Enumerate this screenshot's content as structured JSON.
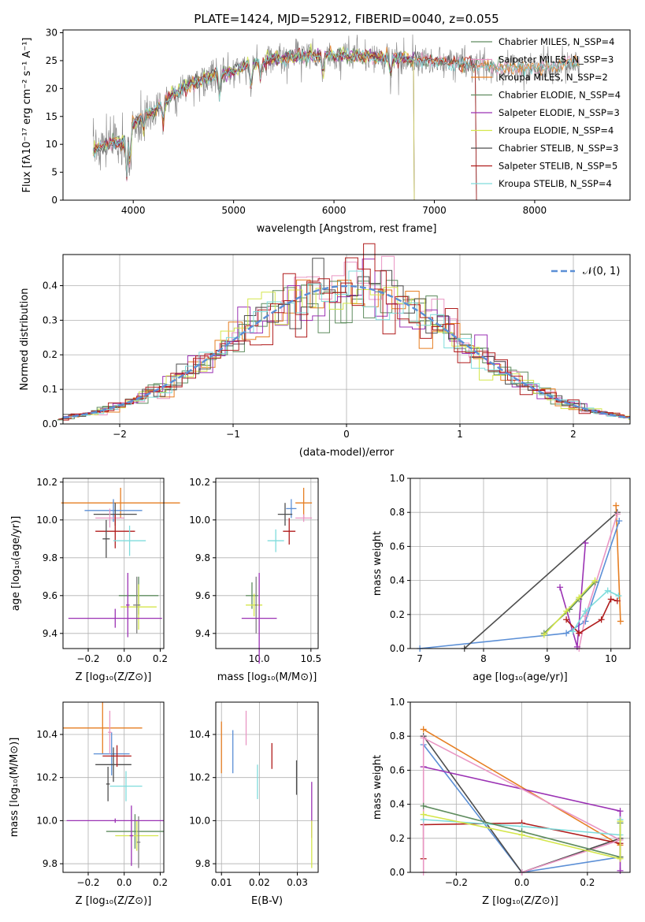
{
  "figure_title": "PLATE=1424, MJD=52912, FIBERID=0040, z=0.055",
  "chart_data": [
    {
      "id": "spectrum",
      "type": "line",
      "xlabel": "wavelength [Angstrom, rest frame]",
      "ylabel": "Flux [fλ10⁻¹⁷ erg cm⁻² s⁻¹ A⁻¹]",
      "xlim": [
        3300,
        8950
      ],
      "ylim": [
        0,
        30.5
      ],
      "xticks": [
        "4000",
        "5000",
        "6000",
        "7000",
        "8000"
      ],
      "yticks": [
        "0",
        "5",
        "10",
        "15",
        "20",
        "25",
        "30"
      ],
      "observed_color": "#808080",
      "legend_position": "upper right",
      "series": [
        {
          "name": "Chabrier MILES, N_SSP=4",
          "color": "#5f8c5f",
          "end": 8450
        },
        {
          "name": "Salpeter MILES, N_SSP=3",
          "color": "#e996c4",
          "end": 8450
        },
        {
          "name": "Kroupa MILES, N_SSP=2",
          "color": "#e67e22",
          "end": 8450
        },
        {
          "name": "Chabrier ELODIE, N_SSP=4",
          "color": "#5f8c5f",
          "end": 6800
        },
        {
          "name": "Salpeter ELODIE, N_SSP=3",
          "color": "#9b32b4",
          "end": 6800
        },
        {
          "name": "Kroupa ELODIE, N_SSP=4",
          "color": "#d4e64b",
          "end": 6800
        },
        {
          "name": "Chabrier STELIB, N_SSP=3",
          "color": "#4d4d4d",
          "end": 7420
        },
        {
          "name": "Salpeter STELIB, N_SSP=5",
          "color": "#b01c1c",
          "end": 7420
        },
        {
          "name": "Kroupa STELIB, N_SSP=4",
          "color": "#7fdcdc",
          "end": 8450
        }
      ],
      "continuum_knots": [
        [
          3600,
          9
        ],
        [
          3700,
          10
        ],
        [
          3900,
          10.5
        ],
        [
          4000,
          14
        ],
        [
          4200,
          16
        ],
        [
          4400,
          19
        ],
        [
          4600,
          21
        ],
        [
          4800,
          22.5
        ],
        [
          5000,
          23
        ],
        [
          5200,
          24.5
        ],
        [
          5500,
          25.5
        ],
        [
          5800,
          26
        ],
        [
          6100,
          26
        ],
        [
          6500,
          25.5
        ],
        [
          7000,
          25
        ],
        [
          7500,
          24
        ],
        [
          8000,
          23.5
        ],
        [
          8500,
          25
        ]
      ]
    },
    {
      "id": "residuals",
      "type": "step",
      "xlabel": "(data-model)/error",
      "ylabel": "Normed distribution",
      "xlim": [
        -2.5,
        2.5
      ],
      "ylim": [
        0,
        0.49
      ],
      "xticks": [
        "−2",
        "−1",
        "0",
        "1",
        "2"
      ],
      "yticks": [
        "0.0",
        "0.1",
        "0.2",
        "0.3",
        "0.4"
      ],
      "legend": "𝒩(0, 1)",
      "gaussian_color": "#5b8fd6"
    },
    {
      "id": "age_vs_Z",
      "type": "errorbar",
      "xlabel": "Z [log₁₀(Z/Z⊙)]",
      "ylabel": "age  [log₁₀(age/yr)]",
      "xlim": [
        -0.34,
        0.22
      ],
      "ylim": [
        9.32,
        10.22
      ],
      "xticks": [
        "−0.2",
        "0.0",
        "0.2"
      ],
      "xtick_values": [
        -0.2,
        0.0,
        0.2
      ],
      "yticks": [
        "9.4",
        "9.6",
        "9.8",
        "10.0",
        "10.2"
      ],
      "ytick_values": [
        9.4,
        9.6,
        9.8,
        10.0,
        10.2
      ],
      "points": [
        {
          "x": -0.02,
          "y": 10.09,
          "xe": 0.33,
          "ye": 0.08,
          "color": "#e67e22"
        },
        {
          "x": -0.06,
          "y": 10.05,
          "xe": 0.16,
          "ye": 0.06,
          "color": "#5b8fd6"
        },
        {
          "x": -0.05,
          "y": 10.03,
          "xe": 0.12,
          "ye": 0.06,
          "color": "#4d4d4d"
        },
        {
          "x": -0.08,
          "y": 10.01,
          "xe": 0.08,
          "ye": 0.05,
          "color": "#e996c4"
        },
        {
          "x": -0.05,
          "y": 9.94,
          "xe": 0.11,
          "ye": 0.09,
          "color": "#b01c1c"
        },
        {
          "x": 0.03,
          "y": 9.89,
          "xe": 0.09,
          "ye": 0.08,
          "color": "#7fdcdc"
        },
        {
          "x": -0.1,
          "y": 9.9,
          "xe": 0.02,
          "ye": 0.1,
          "color": "#4d4d4d"
        },
        {
          "x": 0.08,
          "y": 9.6,
          "xe": 0.11,
          "ye": 0.1,
          "color": "#5f8c5f"
        },
        {
          "x": 0.08,
          "y": 9.54,
          "xe": 0.1,
          "ye": 0.12,
          "color": "#d4e64b"
        },
        {
          "x": 0.07,
          "y": 9.55,
          "xe": 0.02,
          "ye": 0.15,
          "color": "#808080"
        },
        {
          "x": -0.05,
          "y": 9.48,
          "xe": 0.26,
          "ye": 0.05,
          "color": "#9b32b4"
        },
        {
          "x": 0.02,
          "y": 9.55,
          "xe": 0.01,
          "ye": 0.17,
          "color": "#9b32b4"
        }
      ]
    },
    {
      "id": "age_vs_mass",
      "type": "errorbar",
      "xlabel": "mass [log₁₀(M/M⊙)]",
      "ylabel": "",
      "xlim": [
        9.58,
        10.57
      ],
      "ylim": [
        9.32,
        10.22
      ],
      "xticks": [
        "10.0",
        "10.5"
      ],
      "xtick_values": [
        10.0,
        10.5
      ],
      "yticks": [
        "9.4",
        "9.6",
        "9.8",
        "10.0",
        "10.2"
      ],
      "ytick_values": [
        9.4,
        9.6,
        9.8,
        10.0,
        10.2
      ],
      "points": [
        {
          "x": 10.43,
          "y": 10.09,
          "xe": 0.08,
          "ye": 0.08,
          "color": "#e67e22"
        },
        {
          "x": 10.31,
          "y": 10.06,
          "xe": 0.05,
          "ye": 0.05,
          "color": "#5b8fd6"
        },
        {
          "x": 10.43,
          "y": 10.01,
          "xe": 0.08,
          "ye": 0.02,
          "color": "#e996c4"
        },
        {
          "x": 10.25,
          "y": 10.03,
          "xe": 0.07,
          "ye": 0.06,
          "color": "#4d4d4d"
        },
        {
          "x": 10.29,
          "y": 9.94,
          "xe": 0.06,
          "ye": 0.07,
          "color": "#b01c1c"
        },
        {
          "x": 10.16,
          "y": 9.89,
          "xe": 0.08,
          "ye": 0.06,
          "color": "#7fdcdc"
        },
        {
          "x": 9.93,
          "y": 9.6,
          "xe": 0.06,
          "ye": 0.07,
          "color": "#5f8c5f"
        },
        {
          "x": 9.95,
          "y": 9.55,
          "xe": 0.08,
          "ye": 0.06,
          "color": "#d4e64b"
        },
        {
          "x": 9.97,
          "y": 9.55,
          "xe": 0.01,
          "ye": 0.15,
          "color": "#808080"
        },
        {
          "x": 10.0,
          "y": 9.48,
          "xe": 0.17,
          "ye": 0.24,
          "color": "#9b32b4"
        }
      ]
    },
    {
      "id": "mass_weight_vs_age",
      "type": "line",
      "xlabel": "age  [log₁₀(age/yr)]",
      "ylabel": "mass weight",
      "xlim": [
        6.85,
        10.3
      ],
      "ylim": [
        0,
        1.0
      ],
      "xticks": [
        "7",
        "8",
        "9",
        "10"
      ],
      "xtick_values": [
        7,
        8,
        9,
        10
      ],
      "yticks": [
        "0.0",
        "0.2",
        "0.4",
        "0.6",
        "0.8",
        "1.0"
      ],
      "ytick_values": [
        0,
        0.2,
        0.4,
        0.6,
        0.8,
        1.0
      ],
      "series": [
        {
          "color": "#e67e22",
          "points": [
            [
              10.08,
              0.84
            ],
            [
              10.15,
              0.16
            ]
          ]
        },
        {
          "color": "#5b8fd6",
          "points": [
            [
              7.0,
              0.0
            ],
            [
              9.3,
              0.09
            ],
            [
              9.6,
              0.16
            ],
            [
              10.13,
              0.75
            ]
          ]
        },
        {
          "color": "#4d4d4d",
          "points": [
            [
              7.7,
              0.0
            ],
            [
              10.1,
              0.8
            ]
          ]
        },
        {
          "color": "#e996c4",
          "points": [
            [
              9.5,
              0.0
            ],
            [
              9.6,
              0.19
            ],
            [
              10.1,
              0.79
            ]
          ]
        },
        {
          "color": "#9b32b4",
          "points": [
            [
              9.2,
              0.36
            ],
            [
              9.47,
              0.01
            ],
            [
              9.6,
              0.62
            ]
          ]
        },
        {
          "color": "#b01c1c",
          "points": [
            [
              9.3,
              0.17
            ],
            [
              9.5,
              0.09
            ],
            [
              9.85,
              0.17
            ],
            [
              10.0,
              0.29
            ],
            [
              10.1,
              0.28
            ]
          ]
        },
        {
          "color": "#7fdcdc",
          "points": [
            [
              9.4,
              0.1
            ],
            [
              9.6,
              0.22
            ],
            [
              9.95,
              0.34
            ],
            [
              10.12,
              0.31
            ]
          ]
        },
        {
          "color": "#5f8c5f",
          "points": [
            [
              8.95,
              0.09
            ],
            [
              9.35,
              0.23
            ],
            [
              9.5,
              0.29
            ],
            [
              9.75,
              0.39
            ]
          ]
        },
        {
          "color": "#d4e64b",
          "points": [
            [
              8.95,
              0.08
            ],
            [
              9.3,
              0.22
            ],
            [
              9.5,
              0.3
            ],
            [
              9.75,
              0.4
            ]
          ]
        }
      ]
    },
    {
      "id": "mass_vs_Z",
      "type": "errorbar",
      "xlabel": "Z [log₁₀(Z/Z⊙)]",
      "ylabel": "mass [log₁₀(M/M⊙)]",
      "xlim": [
        -0.34,
        0.22
      ],
      "ylim": [
        9.76,
        10.55
      ],
      "xticks": [
        "−0.2",
        "0.0",
        "0.2"
      ],
      "xtick_values": [
        -0.2,
        0.0,
        0.2
      ],
      "yticks": [
        "9.8",
        "10.0",
        "10.2",
        "10.4"
      ],
      "ytick_values": [
        9.8,
        10.0,
        10.2,
        10.4
      ],
      "points": [
        {
          "x": -0.12,
          "y": 10.43,
          "xe": 0.22,
          "ye": 0.12,
          "color": "#e67e22"
        },
        {
          "x": -0.07,
          "y": 10.31,
          "xe": 0.1,
          "ye": 0.1,
          "color": "#5b8fd6"
        },
        {
          "x": -0.06,
          "y": 10.26,
          "xe": 0.1,
          "ye": 0.08,
          "color": "#4d4d4d"
        },
        {
          "x": -0.04,
          "y": 10.3,
          "xe": 0.08,
          "ye": 0.05,
          "color": "#b01c1c"
        },
        {
          "x": -0.08,
          "y": 10.41,
          "xe": 0.01,
          "ye": 0.1,
          "color": "#e996c4"
        },
        {
          "x": 0.01,
          "y": 10.16,
          "xe": 0.09,
          "ye": 0.07,
          "color": "#7fdcdc"
        },
        {
          "x": -0.09,
          "y": 10.17,
          "xe": 0.01,
          "ye": 0.08,
          "color": "#4d4d4d"
        },
        {
          "x": 0.06,
          "y": 9.95,
          "xe": 0.16,
          "ye": 0.08,
          "color": "#5f8c5f"
        },
        {
          "x": 0.07,
          "y": 9.93,
          "xe": 0.12,
          "ye": 0.07,
          "color": "#d4e64b"
        },
        {
          "x": 0.08,
          "y": 9.9,
          "xe": 0.01,
          "ye": 0.12,
          "color": "#808080"
        },
        {
          "x": -0.05,
          "y": 10.0,
          "xe": 0.27,
          "ye": 0.01,
          "color": "#9b32b4"
        },
        {
          "x": 0.04,
          "y": 9.93,
          "xe": 0.01,
          "ye": 0.14,
          "color": "#9b32b4"
        }
      ]
    },
    {
      "id": "mass_vs_EBV",
      "type": "errorbar",
      "xlabel": "E(B-V)",
      "ylabel": "",
      "xlim": [
        0.0085,
        0.0355
      ],
      "ylim": [
        9.76,
        10.55
      ],
      "xticks": [
        "0.01",
        "0.02",
        "0.03"
      ],
      "xtick_values": [
        0.01,
        0.02,
        0.03
      ],
      "yticks": [
        "9.8",
        "10.0",
        "10.2",
        "10.4"
      ],
      "ytick_values": [
        9.8,
        10.0,
        10.2,
        10.4
      ],
      "points": [
        {
          "x": 0.01,
          "y": 10.34,
          "xe": 0,
          "ye": 0.12,
          "color": "#e67e22"
        },
        {
          "x": 0.013,
          "y": 10.32,
          "xe": 0,
          "ye": 0.1,
          "color": "#5b8fd6"
        },
        {
          "x": 0.0165,
          "y": 10.43,
          "xe": 0,
          "ye": 0.08,
          "color": "#e996c4"
        },
        {
          "x": 0.0195,
          "y": 10.18,
          "xe": 0,
          "ye": 0.08,
          "color": "#7fdcdc"
        },
        {
          "x": 0.0233,
          "y": 10.3,
          "xe": 0,
          "ye": 0.06,
          "color": "#b01c1c"
        },
        {
          "x": 0.0298,
          "y": 10.2,
          "xe": 0,
          "ye": 0.08,
          "color": "#4d4d4d"
        },
        {
          "x": 0.0338,
          "y": 10.05,
          "xe": 0,
          "ye": 0.13,
          "color": "#9b32b4"
        },
        {
          "x": 0.0338,
          "y": 9.89,
          "xe": 0,
          "ye": 0.11,
          "color": "#d4e64b"
        }
      ]
    },
    {
      "id": "mass_weight_vs_Z",
      "type": "line",
      "xlabel": "Z [log₁₀(Z/Z⊙)]",
      "ylabel": "mass weight",
      "xlim": [
        -0.34,
        0.33
      ],
      "ylim": [
        0,
        1.0
      ],
      "xticks": [
        "−0.2",
        "0.0",
        "0.2"
      ],
      "xtick_values": [
        -0.2,
        0.0,
        0.2
      ],
      "yticks": [
        "0.0",
        "0.2",
        "0.4",
        "0.6",
        "0.8",
        "1.0"
      ],
      "ytick_values": [
        0,
        0.2,
        0.4,
        0.6,
        0.8,
        1.0
      ],
      "series": [
        {
          "color": "#e67e22",
          "points": [
            [
              -0.3,
              0.84
            ],
            [
              0.3,
              0.16
            ]
          ]
        },
        {
          "color": "#5b8fd6",
          "points": [
            [
              -0.3,
              0.75
            ],
            [
              0.0,
              0.0
            ],
            [
              0.3,
              0.09
            ]
          ]
        },
        {
          "color": "#4d4d4d",
          "points": [
            [
              -0.3,
              0.8
            ],
            [
              0.0,
              0.0
            ],
            [
              0.3,
              0.2
            ]
          ]
        },
        {
          "color": "#9b32b4",
          "points": [
            [
              -0.3,
              0.62
            ],
            [
              0.3,
              0.36
            ],
            [
              0.3,
              0.01
            ]
          ]
        },
        {
          "color": "#b01c1c",
          "points": [
            [
              -0.3,
              0.08
            ],
            [
              -0.3,
              0.28
            ],
            [
              0.0,
              0.29
            ],
            [
              0.3,
              0.17
            ],
            [
              0.3,
              0.09
            ]
          ]
        },
        {
          "color": "#e996c4",
          "points": [
            [
              -0.3,
              0.0
            ],
            [
              -0.3,
              0.79
            ],
            [
              0.3,
              0.19
            ],
            [
              0.0,
              0.0
            ]
          ]
        },
        {
          "color": "#7fdcdc",
          "points": [
            [
              -0.3,
              0.31
            ],
            [
              0.0,
              0.27
            ],
            [
              0.3,
              0.22
            ],
            [
              0.3,
              0.31
            ]
          ]
        },
        {
          "color": "#5f8c5f",
          "points": [
            [
              -0.3,
              0.39
            ],
            [
              0.0,
              0.24
            ],
            [
              0.3,
              0.09
            ],
            [
              0.3,
              0.29
            ]
          ]
        },
        {
          "color": "#d4e64b",
          "points": [
            [
              -0.3,
              0.34
            ],
            [
              0.0,
              0.22
            ],
            [
              0.3,
              0.08
            ],
            [
              0.3,
              0.3
            ]
          ]
        }
      ]
    }
  ]
}
